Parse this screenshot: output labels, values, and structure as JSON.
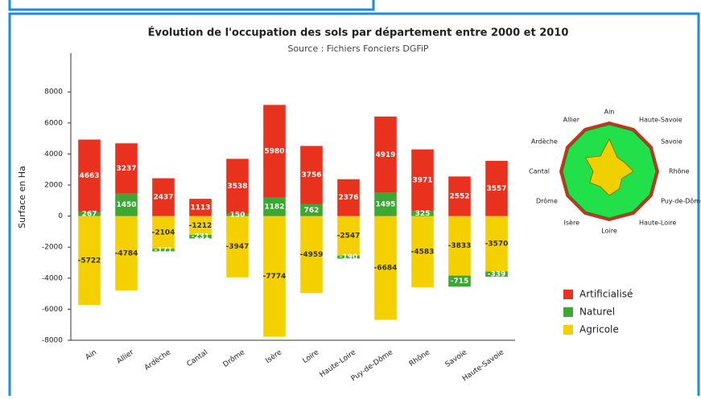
{
  "chart_data": {
    "type": "bar",
    "stacked": true,
    "title": "Évolution de l'occupation des sols par département entre 2000 et 2010",
    "subtitle": "Source : Fichiers Fonciers DGFiP",
    "y_label": "Surface en Ha",
    "categories": [
      "Ain",
      "Allier",
      "Ardèche",
      "Cantal",
      "Drôme",
      "Isère",
      "Loire",
      "Haute-Loire",
      "Puy-de-Dôme",
      "Rhône",
      "Savoie",
      "Haute-Savoie"
    ],
    "series": [
      {
        "name": "Agricole",
        "color": "#f5d000",
        "values": [
          -5722,
          -4784,
          -2104,
          -1212,
          -3947,
          -7774,
          -4959,
          -2547,
          -6684,
          -4583,
          -3833,
          -3570
        ]
      },
      {
        "name": "Naturel",
        "color": "#3aa832",
        "values": [
          267,
          1450,
          -171,
          -231,
          150,
          1182,
          762,
          -190,
          1495,
          325,
          -715,
          -339
        ]
      },
      {
        "name": "Artificialisé",
        "color": "#e8321e",
        "values": [
          4663,
          3237,
          2437,
          1113,
          3538,
          5980,
          3756,
          2376,
          4919,
          3971,
          2552,
          3557
        ]
      }
    ],
    "ylim": [
      -8000,
      10500
    ],
    "yticks": [
      -8000,
      -6000,
      -4000,
      -2000,
      0,
      2000,
      4000,
      6000,
      8000
    ],
    "legend": "right"
  }
}
